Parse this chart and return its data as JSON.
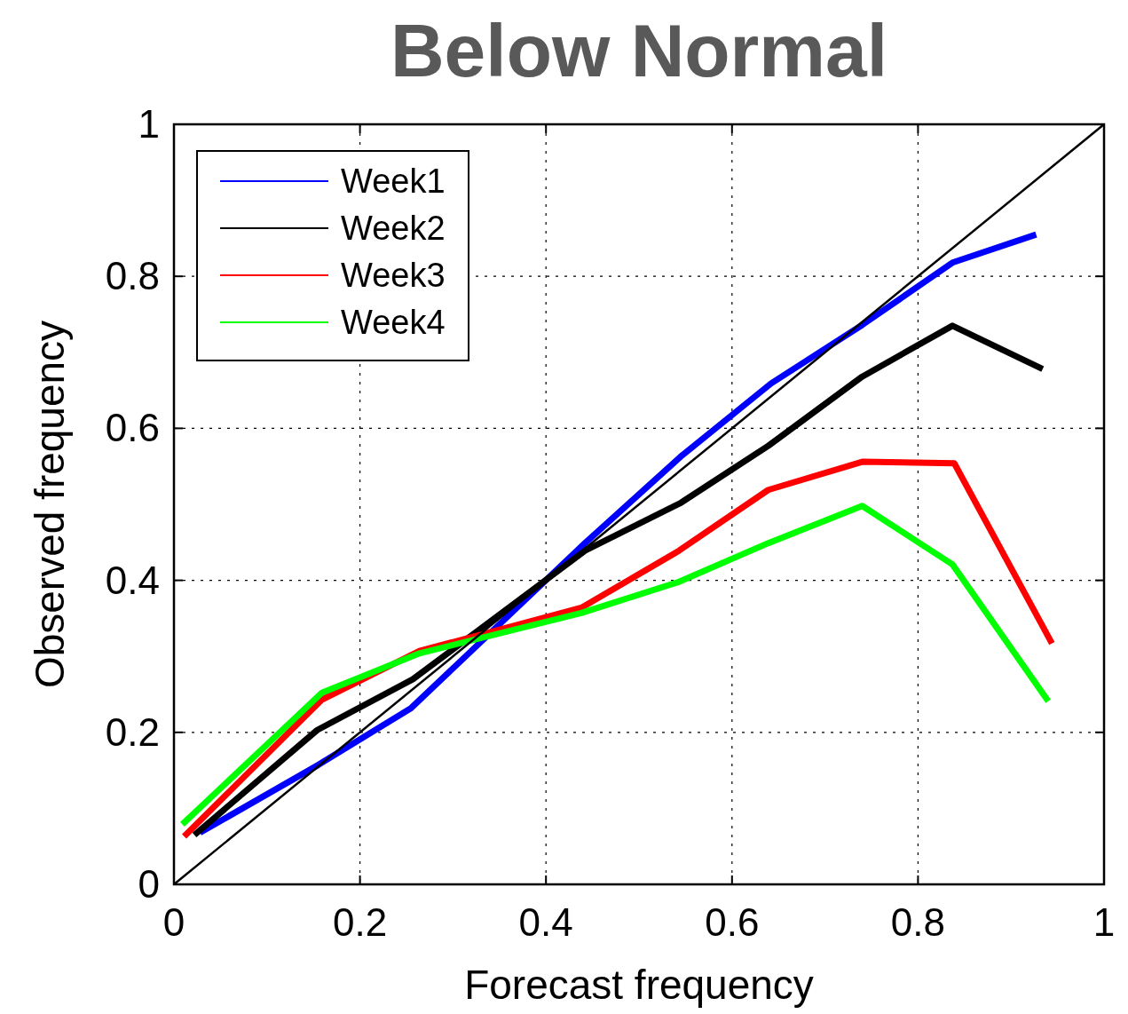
{
  "chart_data": {
    "type": "line",
    "title": "Below Normal",
    "xlabel": "Forecast frequency",
    "ylabel": "Observed frequency",
    "xlim": [
      0,
      1
    ],
    "ylim": [
      0,
      1
    ],
    "xticks": [
      0,
      0.2,
      0.4,
      0.6,
      0.8,
      1
    ],
    "yticks": [
      0,
      0.2,
      0.4,
      0.6,
      0.8,
      1
    ],
    "grid": true,
    "legend": "top left",
    "line_style": "solid",
    "marker": "none",
    "series": [
      {
        "name": "Week1",
        "color": "#0000ff",
        "x": [
          0.028,
          0.155,
          0.255,
          0.442,
          0.545,
          0.642,
          0.74,
          0.837,
          0.927
        ],
        "values": [
          0.068,
          0.157,
          0.232,
          0.449,
          0.563,
          0.659,
          0.736,
          0.818,
          0.855
        ]
      },
      {
        "name": "Week2",
        "color": "#000000",
        "x": [
          0.022,
          0.154,
          0.257,
          0.442,
          0.545,
          0.639,
          0.74,
          0.837,
          0.934
        ],
        "values": [
          0.065,
          0.203,
          0.27,
          0.439,
          0.502,
          0.577,
          0.668,
          0.735,
          0.678
        ]
      },
      {
        "name": "Week3",
        "color": "#ff0000",
        "x": [
          0.011,
          0.159,
          0.264,
          0.438,
          0.543,
          0.639,
          0.74,
          0.839,
          0.944
        ],
        "values": [
          0.063,
          0.243,
          0.307,
          0.364,
          0.439,
          0.519,
          0.556,
          0.554,
          0.317
        ]
      },
      {
        "name": "Week4",
        "color": "#00ff00",
        "x": [
          0.009,
          0.159,
          0.264,
          0.438,
          0.543,
          0.639,
          0.74,
          0.837,
          0.94
        ],
        "values": [
          0.079,
          0.252,
          0.304,
          0.357,
          0.398,
          0.449,
          0.498,
          0.421,
          0.241
        ]
      },
      {
        "color": "#000000",
        "x": [
          0,
          1
        ],
        "values": [
          0,
          1
        ]
      }
    ]
  }
}
